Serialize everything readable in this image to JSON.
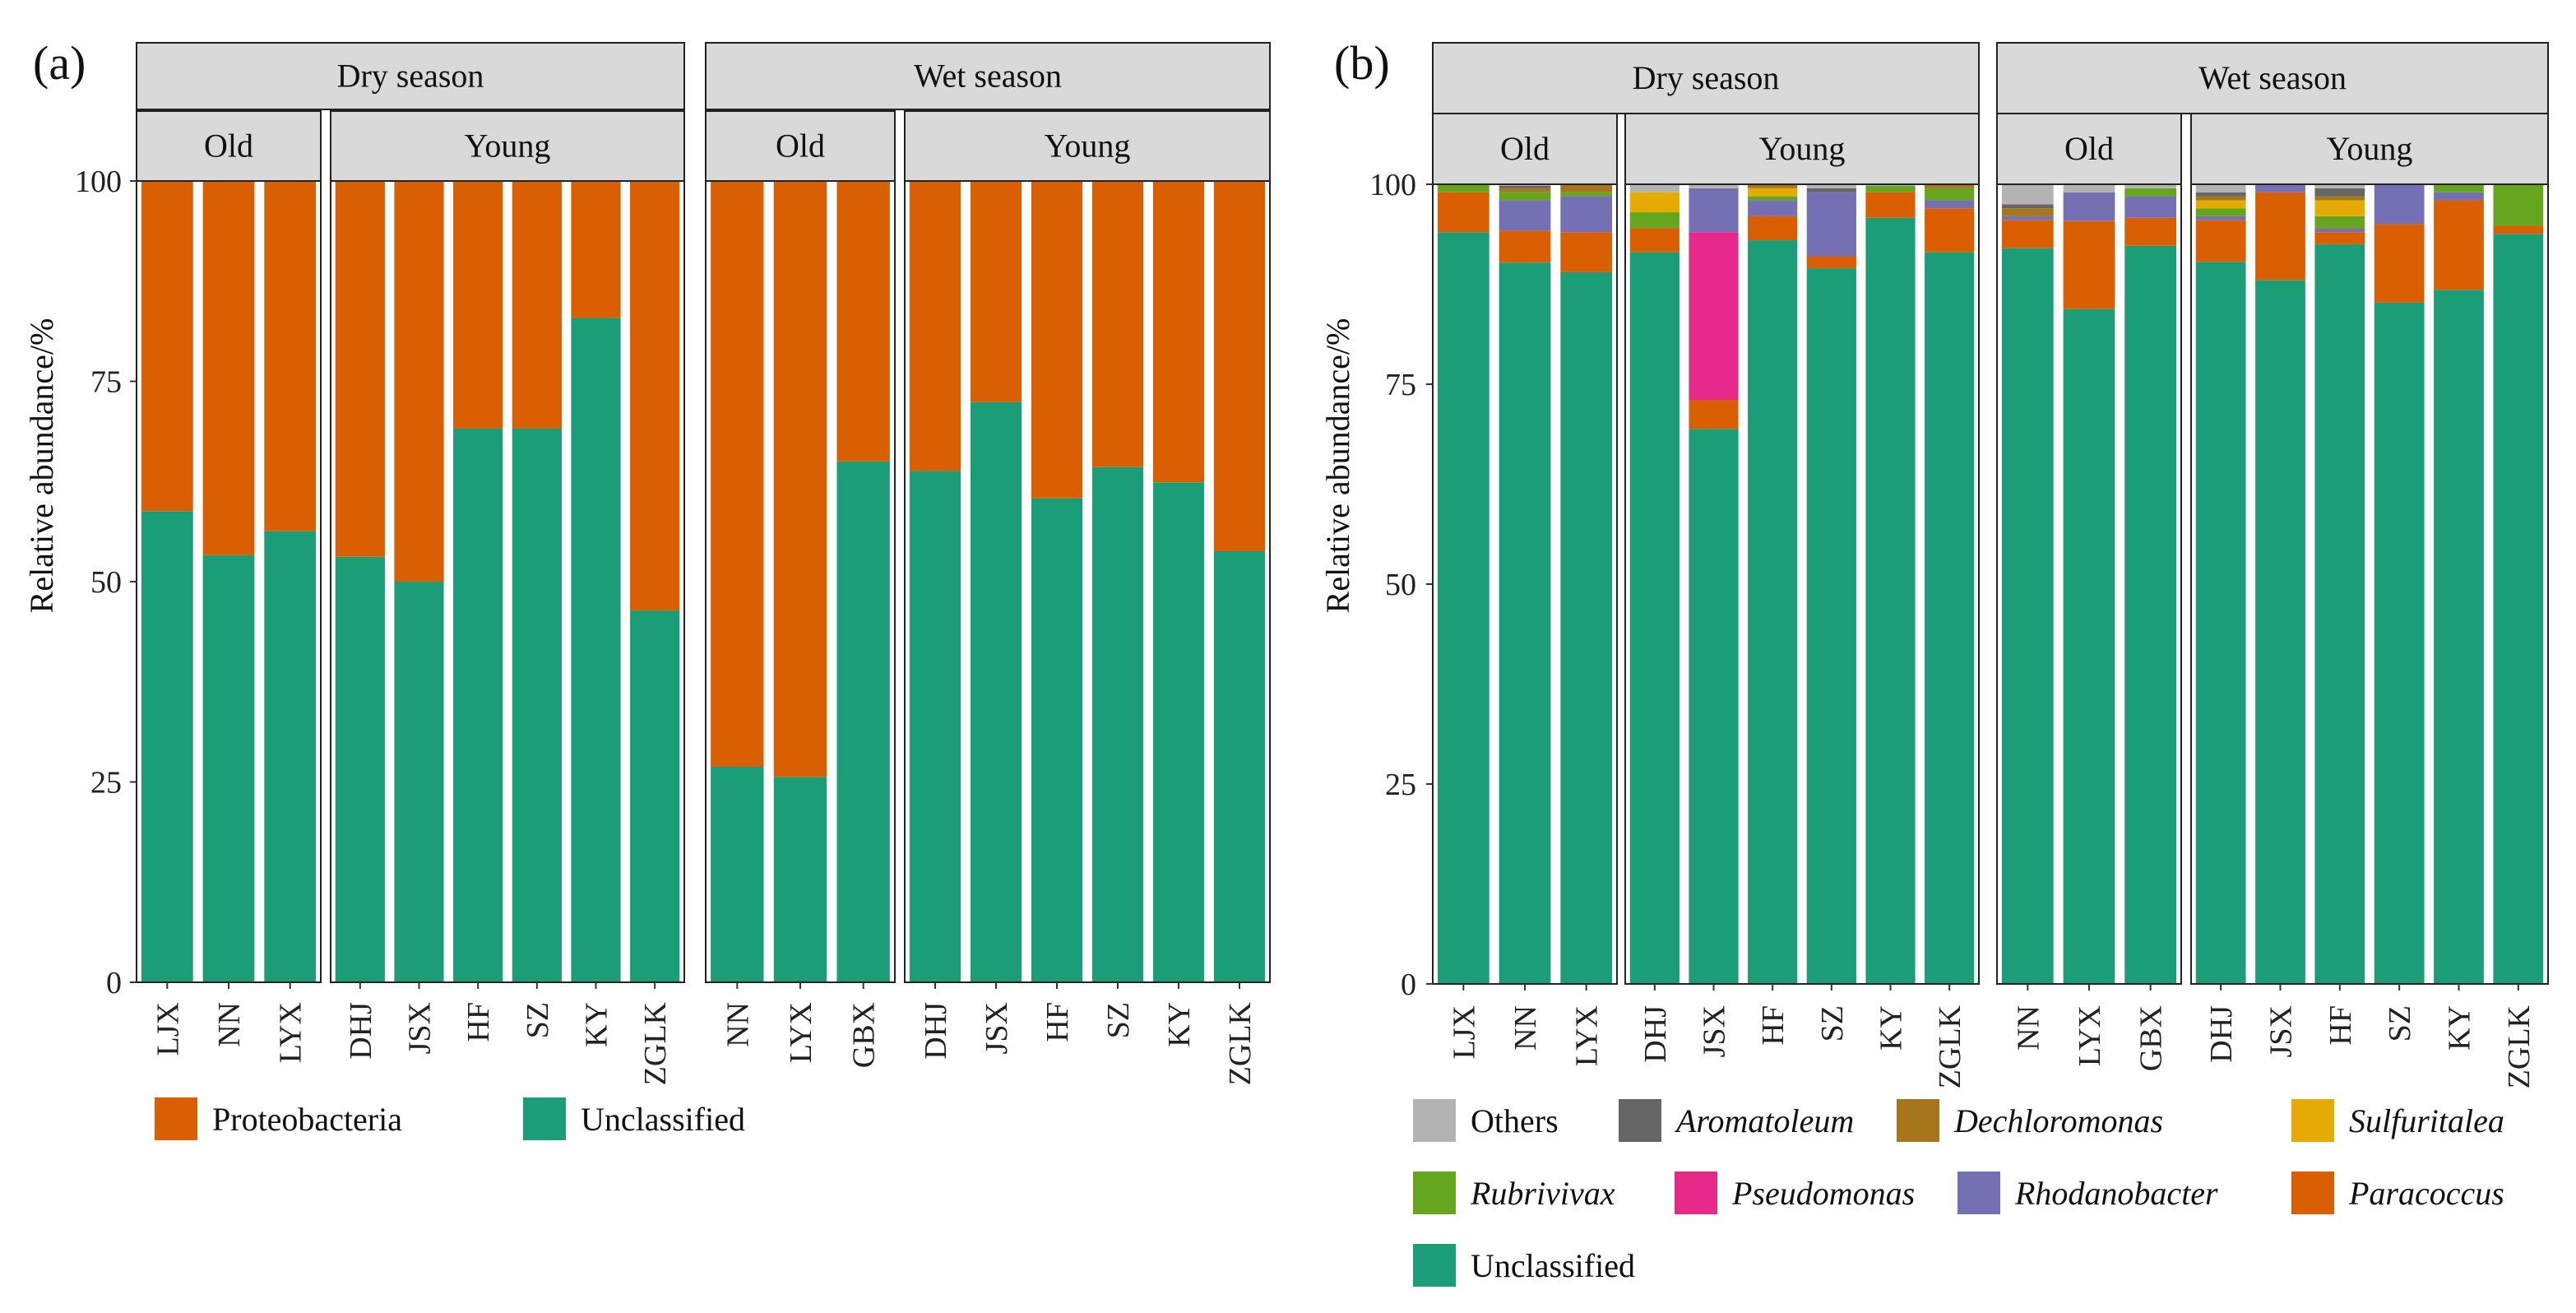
{
  "panels": [
    {
      "tag": "(a)",
      "ylabel": "Relative abundance/%",
      "yticks": [
        0,
        25,
        50,
        75,
        100
      ],
      "seasons": [
        "Dry season",
        "Wet season"
      ],
      "age_labels": [
        "Old",
        "Young"
      ],
      "series_order": [
        "Unclassified",
        "Proteobacteria"
      ],
      "colors": {
        "Proteobacteria": "#d95f02",
        "Unclassified": "#1b9e77"
      },
      "legend": [
        "Proteobacteria",
        "Unclassified"
      ],
      "groups": [
        {
          "season": "Dry season",
          "age": "Old",
          "samples": [
            {
              "name": "LJX",
              "values": [
                58.8,
                41.2
              ]
            },
            {
              "name": "NN",
              "values": [
                53.3,
                46.7
              ]
            },
            {
              "name": "LYX",
              "values": [
                56.3,
                43.7
              ]
            }
          ]
        },
        {
          "season": "Dry season",
          "age": "Young",
          "samples": [
            {
              "name": "DHJ",
              "values": [
                53.1,
                46.9
              ]
            },
            {
              "name": "JSX",
              "values": [
                50.0,
                50.0
              ]
            },
            {
              "name": "HF",
              "values": [
                69.1,
                30.9
              ]
            },
            {
              "name": "SZ",
              "values": [
                69.1,
                30.9
              ]
            },
            {
              "name": "KY",
              "values": [
                82.9,
                17.1
              ]
            },
            {
              "name": "ZGLK",
              "values": [
                46.4,
                53.6
              ]
            }
          ]
        },
        {
          "season": "Wet season",
          "age": "Old",
          "samples": [
            {
              "name": "NN",
              "values": [
                26.9,
                73.1
              ]
            },
            {
              "name": "LYX",
              "values": [
                25.6,
                74.4
              ]
            },
            {
              "name": "GBX",
              "values": [
                65.0,
                35.0
              ]
            }
          ]
        },
        {
          "season": "Wet season",
          "age": "Young",
          "samples": [
            {
              "name": "DHJ",
              "values": [
                63.8,
                36.2
              ]
            },
            {
              "name": "JSX",
              "values": [
                72.4,
                27.6
              ]
            },
            {
              "name": "HF",
              "values": [
                60.4,
                39.6
              ]
            },
            {
              "name": "SZ",
              "values": [
                64.3,
                35.7
              ]
            },
            {
              "name": "KY",
              "values": [
                62.4,
                37.6
              ]
            },
            {
              "name": "ZGLK",
              "values": [
                53.8,
                46.2
              ]
            }
          ]
        }
      ]
    },
    {
      "tag": "(b)",
      "ylabel": "Relative abundance/%",
      "yticks": [
        0,
        25,
        50,
        75,
        100
      ],
      "seasons": [
        "Dry season",
        "Wet season"
      ],
      "age_labels": [
        "Old",
        "Young"
      ],
      "series_order": [
        "Unclassified",
        "Paracoccus",
        "Pseudomonas",
        "Rhodanobacter",
        "Rubrivivax",
        "Sulfuritalea",
        "Dechloromonas",
        "Aromatoleum",
        "Others"
      ],
      "colors": {
        "Others": "#b3b3b3",
        "Aromatoleum": "#666666",
        "Dechloromonas": "#a6761d",
        "Sulfuritalea": "#e6ab02",
        "Rubrivivax": "#66a61e",
        "Pseudomonas": "#e7298a",
        "Rhodanobacter": "#7570b3",
        "Paracoccus": "#d95f02",
        "Unclassified": "#1b9e77"
      },
      "legend": [
        "Others",
        "Aromatoleum",
        "Dechloromonas",
        "Sulfuritalea",
        "Rubrivivax",
        "Pseudomonas",
        "Rhodanobacter",
        "Paracoccus",
        "Unclassified"
      ],
      "groups": [
        {
          "season": "Dry season",
          "age": "Old",
          "samples": [
            {
              "name": "LJX",
              "values": [
                94.0,
                5.0,
                0,
                0,
                1.0,
                0,
                0,
                0,
                0
              ]
            },
            {
              "name": "NN",
              "values": [
                90.2,
                4.0,
                0,
                3.8,
                1.0,
                0,
                0.5,
                0.3,
                0.2
              ]
            },
            {
              "name": "LYX",
              "values": [
                89.0,
                5.0,
                0,
                4.5,
                0.5,
                0,
                1.0,
                0,
                0
              ]
            }
          ]
        },
        {
          "season": "Dry season",
          "age": "Young",
          "samples": [
            {
              "name": "DHJ",
              "values": [
                91.5,
                3.0,
                0,
                0,
                2.0,
                2.5,
                0,
                0,
                1.0
              ]
            },
            {
              "name": "JSX",
              "values": [
                69.4,
                3.6,
                21.0,
                5.5,
                0,
                0,
                0,
                0,
                0.5
              ]
            },
            {
              "name": "HF",
              "values": [
                93.0,
                3.0,
                0,
                2.0,
                0.5,
                1.0,
                0.5,
                0,
                0
              ]
            },
            {
              "name": "SZ",
              "values": [
                89.5,
                1.5,
                0,
                8.0,
                0,
                0,
                0,
                0.5,
                0.5
              ]
            },
            {
              "name": "KY",
              "values": [
                95.8,
                3.2,
                0,
                0,
                0.8,
                0,
                0,
                0,
                0.2
              ]
            },
            {
              "name": "ZGLK",
              "values": [
                91.5,
                5.5,
                0,
                1.0,
                1.5,
                0,
                0.5,
                0,
                0
              ]
            }
          ]
        },
        {
          "season": "Wet season",
          "age": "Old",
          "samples": [
            {
              "name": "NN",
              "values": [
                92.0,
                3.5,
                0,
                0.5,
                0,
                0,
                1.0,
                0.5,
                2.5
              ]
            },
            {
              "name": "LYX",
              "values": [
                84.4,
                11.0,
                0,
                3.6,
                0,
                0,
                0,
                0,
                1.0
              ]
            },
            {
              "name": "GBX",
              "values": [
                92.3,
                3.5,
                0,
                2.7,
                1.0,
                0,
                0,
                0,
                0.5
              ]
            }
          ]
        },
        {
          "season": "Wet season",
          "age": "Young",
          "samples": [
            {
              "name": "DHJ",
              "values": [
                90.3,
                5.2,
                0,
                0.5,
                1.0,
                1.0,
                0.5,
                0.5,
                1.0
              ]
            },
            {
              "name": "JSX",
              "values": [
                88.0,
                11.0,
                0,
                1.0,
                0,
                0,
                0,
                0,
                0
              ]
            },
            {
              "name": "HF",
              "values": [
                92.5,
                1.5,
                0,
                0.5,
                1.5,
                2.0,
                0.5,
                1.0,
                0.5
              ]
            },
            {
              "name": "SZ",
              "values": [
                85.2,
                9.8,
                0,
                5.0,
                0,
                0,
                0,
                0,
                0
              ]
            },
            {
              "name": "KY",
              "values": [
                86.8,
                11.2,
                0,
                1.0,
                1.0,
                0,
                0,
                0,
                0
              ]
            },
            {
              "name": "ZGLK",
              "values": [
                93.8,
                1.0,
                0,
                0,
                5.2,
                0,
                0,
                0,
                0
              ]
            }
          ]
        }
      ]
    }
  ]
}
